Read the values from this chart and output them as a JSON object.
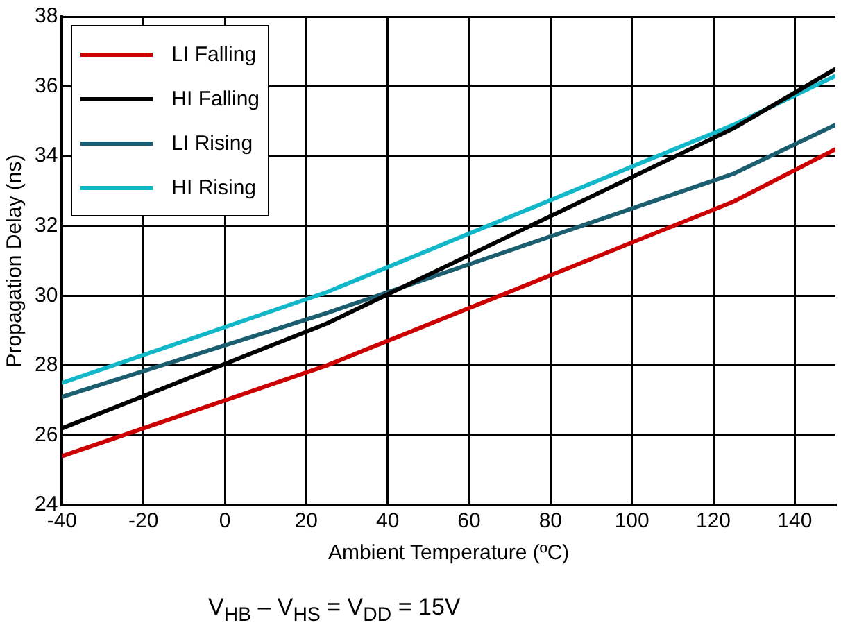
{
  "chart_data": {
    "type": "line",
    "xlabel": "Ambient Temperature (ºC)",
    "ylabel": "Propagation Delay (ns)",
    "x": [
      -40,
      25,
      125,
      150
    ],
    "series": [
      {
        "name": "LI Falling",
        "color": "#cc0000",
        "values": [
          25.4,
          28.0,
          32.7,
          34.2
        ]
      },
      {
        "name": "HI Falling",
        "color": "#000000",
        "values": [
          26.2,
          29.2,
          34.8,
          36.5
        ]
      },
      {
        "name": "LI Rising",
        "color": "#1b5e70",
        "values": [
          27.1,
          29.5,
          33.5,
          34.9
        ]
      },
      {
        "name": "HI Rising",
        "color": "#12b8c9",
        "values": [
          27.5,
          30.1,
          34.9,
          36.3
        ]
      }
    ],
    "xlim": [
      -40,
      150
    ],
    "xticks": [
      -40,
      -20,
      0,
      20,
      40,
      60,
      80,
      100,
      120,
      140
    ],
    "ylim": [
      24,
      38
    ],
    "yticks": [
      24,
      26,
      28,
      30,
      32,
      34,
      36,
      38
    ],
    "grid": true,
    "legend": "top left",
    "marker": "none",
    "line_style": "solid",
    "annotations": [
      "V$_{HB}$ – V$_{HS}$ = V$_{DD}$ = 15V"
    ]
  }
}
